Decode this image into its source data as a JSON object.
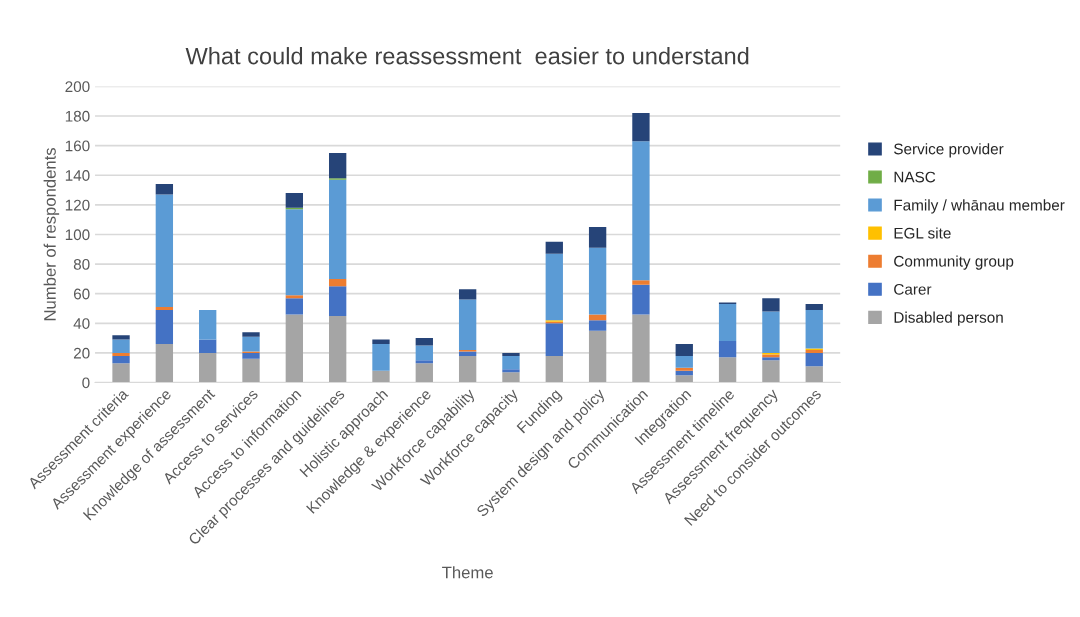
{
  "chart_data": {
    "type": "bar",
    "stacked": true,
    "title": "What could make reassessment  easier to understand",
    "xlabel": "Theme",
    "ylabel": "Number of respondents",
    "categories": [
      "Assessment criteria",
      "Assessment experience",
      "Knowledge of assessment",
      "Access to services",
      "Access to information",
      "Clear processes and guidelines",
      "Holistic approach",
      "Knowledge & experience",
      "Workforce capability",
      "Workforce capacity",
      "Funding",
      "System design and policy",
      "Communication",
      "Integration",
      "Assessment timeline",
      "Assessment frequency",
      "Need to consider outcomes"
    ],
    "series": [
      {
        "name": "Disabled person",
        "color": "#a5a5a5",
        "values": [
          13,
          26,
          20,
          16,
          46,
          45,
          8,
          13,
          18,
          7,
          18,
          35,
          46,
          5,
          17,
          15,
          11
        ]
      },
      {
        "name": "Carer",
        "color": "#4472c4",
        "values": [
          5,
          23,
          9,
          4,
          11,
          20,
          0,
          2,
          3,
          2,
          22,
          7,
          20,
          3,
          11,
          2,
          9
        ]
      },
      {
        "name": "Community group",
        "color": "#ed7d31",
        "values": [
          2,
          2,
          0,
          1,
          2,
          5,
          0,
          0,
          1,
          0,
          1,
          4,
          3,
          2,
          0,
          2,
          2
        ]
      },
      {
        "name": "EGL site",
        "color": "#ffc000",
        "values": [
          0,
          0,
          0,
          0,
          0,
          0,
          0,
          0,
          0,
          0,
          1,
          0,
          0,
          0,
          0,
          1,
          1
        ]
      },
      {
        "name": "Family / whānau member",
        "color": "#5b9bd5",
        "values": [
          9,
          76,
          20,
          10,
          58,
          67,
          18,
          10,
          34,
          9,
          45,
          45,
          94,
          8,
          25,
          28,
          26
        ]
      },
      {
        "name": "NASC",
        "color": "#70ad47",
        "values": [
          0,
          0,
          0,
          0,
          1,
          1,
          0,
          0,
          0,
          0,
          0,
          0,
          0,
          0,
          0,
          0,
          0
        ]
      },
      {
        "name": "Service provider",
        "color": "#264478",
        "values": [
          3,
          7,
          0,
          3,
          10,
          17,
          3,
          5,
          7,
          2,
          8,
          14,
          19,
          8,
          1,
          9,
          4
        ]
      }
    ],
    "ylim": [
      0,
      200
    ],
    "yticks": [
      0,
      20,
      40,
      60,
      80,
      100,
      120,
      140,
      160,
      180,
      200
    ],
    "grid": "y",
    "legend": "right"
  }
}
